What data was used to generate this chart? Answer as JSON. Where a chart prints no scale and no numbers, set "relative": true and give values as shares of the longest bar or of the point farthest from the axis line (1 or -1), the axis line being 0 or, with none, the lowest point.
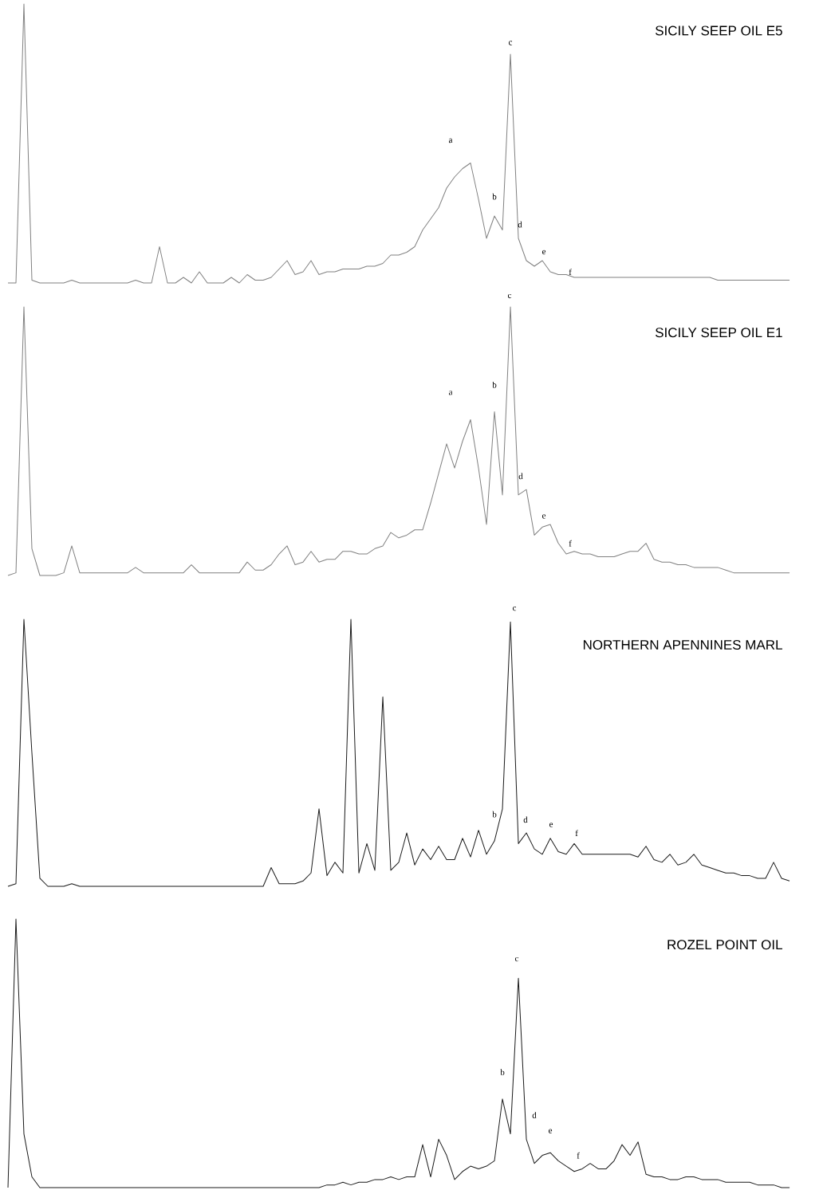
{
  "chart_data": [
    {
      "type": "line",
      "title": "SICILY SEEP OIL E5",
      "relative": true,
      "color": "#808080",
      "categories": [
        null,
        null,
        null,
        null,
        null,
        null,
        null,
        null,
        null,
        null,
        null,
        null,
        null,
        null,
        null,
        null,
        null,
        null,
        null,
        null,
        null,
        null,
        null,
        null,
        null,
        null,
        null,
        null,
        null,
        null,
        null,
        null,
        null,
        null,
        null,
        null,
        null,
        null,
        null,
        null,
        null,
        null,
        null,
        null,
        null,
        null,
        null,
        null,
        null,
        null,
        null,
        null,
        null,
        null,
        null,
        null,
        null,
        null,
        null,
        null,
        null,
        null,
        null,
        null,
        null,
        null,
        null,
        null,
        null,
        null,
        null,
        null,
        null,
        null,
        null,
        null,
        null,
        null,
        null,
        null,
        null,
        null,
        null,
        null,
        null,
        null,
        null,
        null,
        null,
        null,
        null,
        null,
        null,
        null,
        null,
        null,
        null,
        null,
        null
      ],
      "values": [
        0,
        0,
        1,
        0.01,
        0,
        0,
        0,
        0,
        0.01,
        0,
        0,
        0,
        0,
        0,
        0,
        0,
        0.01,
        0,
        0,
        0.13,
        0,
        0,
        0.02,
        0,
        0.04,
        0,
        0,
        0,
        0.02,
        0,
        0.03,
        0.01,
        0.01,
        0.02,
        0.05,
        0.08,
        0.03,
        0.04,
        0.08,
        0.03,
        0.04,
        0.04,
        0.05,
        0.05,
        0.05,
        0.06,
        0.06,
        0.07,
        0.1,
        0.1,
        0.11,
        0.13,
        0.19,
        0.23,
        0.27,
        0.34,
        0.38,
        0.41,
        0.43,
        0.3,
        0.16,
        0.24,
        0.19,
        0.82,
        0.16,
        0.08,
        0.06,
        0.08,
        0.04,
        0.03,
        0.03,
        0.02,
        0.02,
        0.02,
        0.02,
        0.02,
        0.02,
        0.02,
        0.02,
        0.02,
        0.02,
        0.02,
        0.02,
        0.02,
        0.02,
        0.02,
        0.02,
        0.02,
        0.02,
        0.01,
        0.01,
        0.01,
        0.01,
        0.01,
        0.01,
        0.01,
        0.01,
        0.01,
        0.01
      ],
      "annotations": [
        "a",
        "b",
        "c",
        "d",
        "e",
        "f"
      ]
    },
    {
      "type": "line",
      "title": "SICILY SEEP OIL E1",
      "relative": true,
      "color": "#808080",
      "categories": [
        null,
        null,
        null,
        null,
        null,
        null,
        null,
        null,
        null,
        null,
        null,
        null,
        null,
        null,
        null,
        null,
        null,
        null,
        null,
        null,
        null,
        null,
        null,
        null,
        null,
        null,
        null,
        null,
        null,
        null,
        null,
        null,
        null,
        null,
        null,
        null,
        null,
        null,
        null,
        null,
        null,
        null,
        null,
        null,
        null,
        null,
        null,
        null,
        null,
        null,
        null,
        null,
        null,
        null,
        null,
        null,
        null,
        null,
        null,
        null,
        null,
        null,
        null,
        null,
        null,
        null,
        null,
        null,
        null,
        null,
        null,
        null,
        null,
        null,
        null,
        null,
        null,
        null,
        null,
        null,
        null,
        null,
        null,
        null,
        null,
        null,
        null,
        null,
        null,
        null,
        null,
        null,
        null,
        null,
        null,
        null,
        null,
        null,
        null
      ],
      "values": [
        0,
        0.01,
        1,
        0.1,
        0,
        0,
        0,
        0.01,
        0.11,
        0.01,
        0.01,
        0.01,
        0.01,
        0.01,
        0.01,
        0.01,
        0.03,
        0.01,
        0.01,
        0.01,
        0.01,
        0.01,
        0.01,
        0.04,
        0.01,
        0.01,
        0.01,
        0.01,
        0.01,
        0.01,
        0.05,
        0.02,
        0.02,
        0.04,
        0.08,
        0.11,
        0.04,
        0.05,
        0.09,
        0.05,
        0.06,
        0.06,
        0.09,
        0.09,
        0.08,
        0.08,
        0.1,
        0.11,
        0.16,
        0.14,
        0.15,
        0.17,
        0.17,
        0.27,
        0.38,
        0.49,
        0.4,
        0.5,
        0.58,
        0.4,
        0.19,
        0.61,
        0.3,
        1,
        0.3,
        0.32,
        0.15,
        0.18,
        0.19,
        0.12,
        0.08,
        0.09,
        0.08,
        0.08,
        0.07,
        0.07,
        0.07,
        0.08,
        0.09,
        0.09,
        0.12,
        0.06,
        0.05,
        0.05,
        0.04,
        0.04,
        0.03,
        0.03,
        0.03,
        0.03,
        0.02,
        0.01,
        0.01,
        0.01,
        0.01,
        0.01,
        0.01,
        0.01,
        0.01
      ],
      "annotations": [
        "a",
        "b",
        "c",
        "d",
        "e",
        "f"
      ]
    },
    {
      "type": "line",
      "title": "NORTHERN APENNINES MARL",
      "relative": true,
      "color": "#1a1a1a",
      "categories": [
        null,
        null,
        null,
        null,
        null,
        null,
        null,
        null,
        null,
        null,
        null,
        null,
        null,
        null,
        null,
        null,
        null,
        null,
        null,
        null,
        null,
        null,
        null,
        null,
        null,
        null,
        null,
        null,
        null,
        null,
        null,
        null,
        null,
        null,
        null,
        null,
        null,
        null,
        null,
        null,
        null,
        null,
        null,
        null,
        null,
        null,
        null,
        null,
        null,
        null,
        null,
        null,
        null,
        null,
        null,
        null,
        null,
        null,
        null,
        null,
        null,
        null,
        null,
        null,
        null,
        null,
        null,
        null,
        null,
        null,
        null,
        null,
        null,
        null,
        null,
        null,
        null,
        null,
        null,
        null,
        null,
        null,
        null,
        null,
        null,
        null,
        null,
        null,
        null,
        null,
        null,
        null,
        null,
        null,
        null,
        null,
        null,
        null,
        null
      ],
      "values": [
        0,
        0.01,
        1,
        0.5,
        0.03,
        0,
        0,
        0,
        0.01,
        0,
        0,
        0,
        0,
        0,
        0,
        0,
        0,
        0,
        0,
        0,
        0,
        0,
        0,
        0,
        0,
        0,
        0,
        0,
        0,
        0,
        0,
        0,
        0,
        0.07,
        0.01,
        0.01,
        0.01,
        0.02,
        0.05,
        0.29,
        0.04,
        0.09,
        0.05,
        1,
        0.05,
        0.16,
        0.06,
        0.71,
        0.06,
        0.09,
        0.2,
        0.08,
        0.14,
        0.1,
        0.15,
        0.1,
        0.1,
        0.18,
        0.11,
        0.21,
        0.12,
        0.17,
        0.29,
        0.99,
        0.16,
        0.2,
        0.14,
        0.12,
        0.18,
        0.13,
        0.12,
        0.16,
        0.12,
        0.12,
        0.12,
        0.12,
        0.12,
        0.12,
        0.12,
        0.11,
        0.15,
        0.1,
        0.09,
        0.12,
        0.08,
        0.09,
        0.12,
        0.08,
        0.07,
        0.06,
        0.05,
        0.05,
        0.04,
        0.04,
        0.03,
        0.03,
        0.09,
        0.03,
        0.02
      ],
      "annotations": [
        "b",
        "c",
        "d",
        "e",
        "f"
      ]
    },
    {
      "type": "line",
      "title": "ROZEL POINT OIL",
      "relative": true,
      "color": "#1a1a1a",
      "categories": [
        null,
        null,
        null,
        null,
        null,
        null,
        null,
        null,
        null,
        null,
        null,
        null,
        null,
        null,
        null,
        null,
        null,
        null,
        null,
        null,
        null,
        null,
        null,
        null,
        null,
        null,
        null,
        null,
        null,
        null,
        null,
        null,
        null,
        null,
        null,
        null,
        null,
        null,
        null,
        null,
        null,
        null,
        null,
        null,
        null,
        null,
        null,
        null,
        null,
        null,
        null,
        null,
        null,
        null,
        null,
        null,
        null,
        null,
        null,
        null,
        null,
        null,
        null,
        null,
        null,
        null,
        null,
        null,
        null,
        null,
        null,
        null,
        null,
        null,
        null,
        null,
        null,
        null,
        null,
        null,
        null,
        null,
        null,
        null,
        null,
        null,
        null,
        null,
        null,
        null,
        null,
        null,
        null,
        null,
        null,
        null,
        null,
        null,
        null
      ],
      "values": [
        0,
        1,
        0.2,
        0.04,
        0,
        0,
        0,
        0,
        0,
        0,
        0,
        0,
        0,
        0,
        0,
        0,
        0,
        0,
        0,
        0,
        0,
        0,
        0,
        0,
        0,
        0,
        0,
        0,
        0,
        0,
        0,
        0,
        0,
        0,
        0,
        0,
        0,
        0,
        0,
        0,
        0.01,
        0.01,
        0.02,
        0.01,
        0.02,
        0.02,
        0.03,
        0.03,
        0.04,
        0.03,
        0.04,
        0.04,
        0.16,
        0.04,
        0.18,
        0.12,
        0.03,
        0.06,
        0.08,
        0.07,
        0.08,
        0.1,
        0.33,
        0.2,
        0.78,
        0.18,
        0.09,
        0.12,
        0.13,
        0.1,
        0.08,
        0.06,
        0.07,
        0.09,
        0.07,
        0.07,
        0.1,
        0.16,
        0.12,
        0.17,
        0.05,
        0.04,
        0.04,
        0.03,
        0.03,
        0.04,
        0.04,
        0.03,
        0.03,
        0.03,
        0.02,
        0.02,
        0.02,
        0.02,
        0.01,
        0.01,
        0.01,
        0,
        0
      ],
      "annotations": [
        "b",
        "c",
        "d",
        "e",
        "f"
      ]
    }
  ]
}
